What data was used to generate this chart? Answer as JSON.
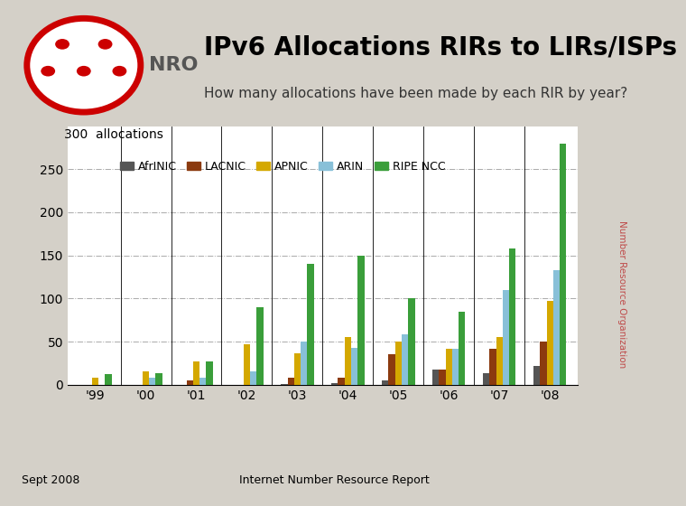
{
  "title": "IPv6 Allocations RIRs to LIRs/ISPs",
  "subtitle": "How many allocations have been made by each RIR by year?",
  "years": [
    "'99",
    "'00",
    "'01",
    "'02",
    "'03",
    "'04",
    "'05",
    "'06",
    "'07",
    "'08"
  ],
  "rirs": [
    "AfrINIC",
    "LACNIC",
    "APNIC",
    "ARIN",
    "RIPE NCC"
  ],
  "colors": [
    "#555555",
    "#8b3a0f",
    "#d4a800",
    "#88c0d8",
    "#3a9e3a"
  ],
  "data": {
    "AfrINIC": [
      0,
      0,
      0,
      0,
      1,
      2,
      5,
      18,
      13,
      22
    ],
    "LACNIC": [
      0,
      0,
      5,
      0,
      8,
      8,
      35,
      18,
      42,
      50
    ],
    "APNIC": [
      8,
      15,
      27,
      47,
      37,
      55,
      50,
      42,
      55,
      97
    ],
    "ARIN": [
      0,
      8,
      8,
      15,
      50,
      43,
      58,
      42,
      110,
      133
    ],
    "RIPE NCC": [
      12,
      13,
      27,
      90,
      140,
      150,
      100,
      85,
      158,
      280
    ]
  },
  "ylim": [
    0,
    300
  ],
  "yticks": [
    0,
    50,
    100,
    150,
    200,
    250
  ],
  "ytick_labels": [
    "0",
    "50",
    "100",
    "150",
    "200",
    "250"
  ],
  "footer_left": "Sept 2008",
  "footer_center": "Internet Number Resource Report",
  "fig_bg": "#d4d0c8",
  "header_bg": "#ffffff",
  "chart_bg": "#ffffff",
  "bar_width": 0.13
}
